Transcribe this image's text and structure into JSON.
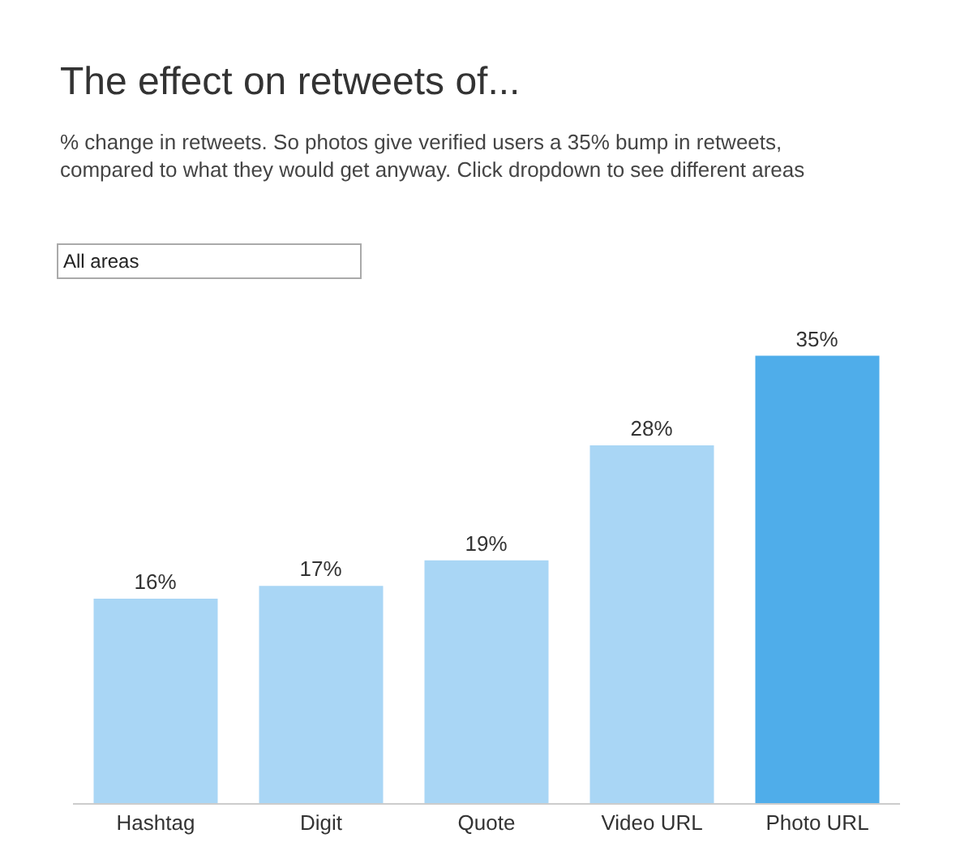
{
  "chart_data": {
    "type": "bar",
    "title": "The effect on retweets of...",
    "subtitle": "% change in retweets. So photos give verified users a 35% bump in retweets, compared to what they would get anyway. Click dropdown to see different areas",
    "annotations": [
      "All areas"
    ],
    "categories": [
      "Hashtag",
      "Digit",
      "Quote",
      "Video URL",
      "Photo URL"
    ],
    "values": [
      16,
      17,
      19,
      28,
      35
    ],
    "value_labels": [
      "16%",
      "17%",
      "19%",
      "28%",
      "35%"
    ],
    "colors": [
      "#a9d6f5",
      "#a9d6f5",
      "#a9d6f5",
      "#a9d6f5",
      "#4fadea"
    ],
    "legend": false
  }
}
